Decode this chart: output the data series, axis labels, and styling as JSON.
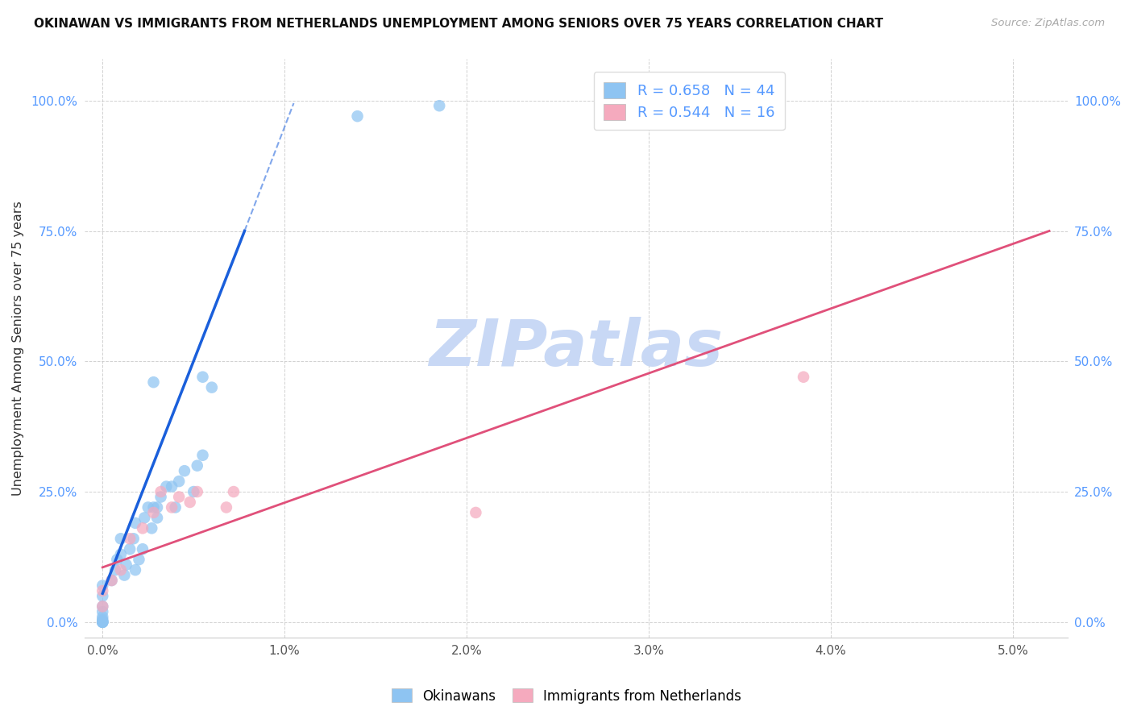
{
  "title": "OKINAWAN VS IMMIGRANTS FROM NETHERLANDS UNEMPLOYMENT AMONG SENIORS OVER 75 YEARS CORRELATION CHART",
  "source": "Source: ZipAtlas.com",
  "ylabel": "Unemployment Among Seniors over 75 years",
  "x_tick_labels": [
    "0.0%",
    "1.0%",
    "2.0%",
    "3.0%",
    "4.0%",
    "5.0%"
  ],
  "x_tick_values": [
    0.0,
    1.0,
    2.0,
    3.0,
    4.0,
    5.0
  ],
  "y_tick_labels": [
    "0.0%",
    "25.0%",
    "50.0%",
    "75.0%",
    "100.0%"
  ],
  "y_tick_values": [
    0.0,
    25.0,
    50.0,
    75.0,
    100.0
  ],
  "xlim": [
    -0.1,
    5.3
  ],
  "ylim": [
    -3.0,
    108.0
  ],
  "blue_label": "Okinawans",
  "pink_label": "Immigrants from Netherlands",
  "blue_R": "0.658",
  "blue_N": "44",
  "pink_R": "0.544",
  "pink_N": "16",
  "blue_color": "#8EC4F2",
  "pink_color": "#F5AABE",
  "blue_line_color": "#1A5FDB",
  "pink_line_color": "#E0507A",
  "watermark_text": "ZIPatlas",
  "watermark_color": "#C8D8F5",
  "blue_scatter_x": [
    0.0,
    0.0,
    0.0,
    0.0,
    0.0,
    0.0,
    0.0,
    0.0,
    0.0,
    0.0,
    0.0,
    0.05,
    0.07,
    0.08,
    0.1,
    0.1,
    0.12,
    0.13,
    0.15,
    0.17,
    0.18,
    0.18,
    0.2,
    0.22,
    0.23,
    0.25,
    0.27,
    0.28,
    0.3,
    0.3,
    0.32,
    0.35,
    0.38,
    0.4,
    0.42,
    0.45,
    0.5,
    0.52,
    0.55,
    0.6,
    0.28,
    0.55,
    1.4,
    1.85
  ],
  "blue_scatter_y": [
    0.0,
    0.0,
    0.0,
    0.0,
    0.2,
    0.5,
    1.0,
    2.0,
    3.0,
    5.0,
    7.0,
    8.0,
    10.0,
    12.0,
    13.0,
    16.0,
    9.0,
    11.0,
    14.0,
    16.0,
    10.0,
    19.0,
    12.0,
    14.0,
    20.0,
    22.0,
    18.0,
    22.0,
    20.0,
    22.0,
    24.0,
    26.0,
    26.0,
    22.0,
    27.0,
    29.0,
    25.0,
    30.0,
    32.0,
    45.0,
    46.0,
    47.0,
    97.0,
    99.0
  ],
  "pink_scatter_x": [
    0.0,
    0.0,
    0.05,
    0.1,
    0.15,
    0.22,
    0.28,
    0.32,
    0.38,
    0.42,
    0.48,
    0.52,
    0.68,
    0.72,
    2.05,
    3.85
  ],
  "pink_scatter_y": [
    3.0,
    6.0,
    8.0,
    10.0,
    16.0,
    18.0,
    21.0,
    25.0,
    22.0,
    24.0,
    23.0,
    25.0,
    22.0,
    25.0,
    21.0,
    47.0
  ],
  "blue_line_solid_x0": 0.0,
  "blue_line_solid_y0": 5.5,
  "blue_line_solid_x1": 0.78,
  "blue_line_solid_y1": 75.0,
  "blue_line_dash_x0": 0.78,
  "blue_line_dash_y0": 75.0,
  "blue_line_dash_x1": 1.05,
  "blue_line_dash_y1": 99.5,
  "pink_line_x0": 0.0,
  "pink_line_y0": 10.5,
  "pink_line_x1": 5.2,
  "pink_line_y1": 75.0
}
